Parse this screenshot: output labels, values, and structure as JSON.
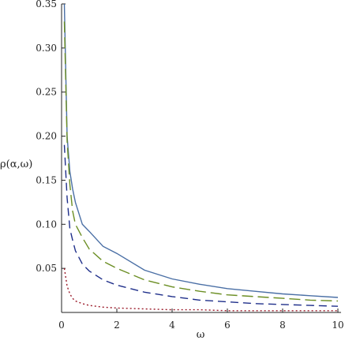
{
  "chart_data": {
    "type": "line",
    "xlabel": "ω",
    "ylabel": "ρ(α,ω)",
    "xlim": [
      0,
      10
    ],
    "ylim": [
      0,
      0.35
    ],
    "x_ticks": [
      "0",
      "2",
      "4",
      "6",
      "8",
      "10"
    ],
    "y_ticks": [
      "0.05",
      "0.10",
      "0.15",
      "0.20",
      "0.25",
      "0.30",
      "0.35"
    ],
    "grid": false,
    "legend": "none",
    "x": [
      0.1,
      0.2,
      0.3,
      0.4,
      0.5,
      0.75,
      1,
      1.5,
      2,
      3,
      4,
      5,
      6,
      7,
      8,
      9,
      10
    ],
    "series": [
      {
        "color": "#4a6fa5",
        "style": "solid",
        "values": [
          0.35,
          0.2,
          0.16,
          0.14,
          0.125,
          0.1,
          0.092,
          0.075,
          0.067,
          0.048,
          0.038,
          0.032,
          0.027,
          0.024,
          0.021,
          0.019,
          0.017
        ]
      },
      {
        "color": "#6b8e23",
        "style": "long-dash",
        "values": [
          0.33,
          0.195,
          0.145,
          0.115,
          0.1,
          0.085,
          0.072,
          0.058,
          0.05,
          0.037,
          0.029,
          0.024,
          0.02,
          0.018,
          0.016,
          0.014,
          0.013
        ]
      },
      {
        "color": "#1f2f8a",
        "style": "medium-dash",
        "values": [
          0.19,
          0.13,
          0.095,
          0.082,
          0.07,
          0.055,
          0.047,
          0.037,
          0.031,
          0.023,
          0.018,
          0.014,
          0.012,
          0.01,
          0.009,
          0.008,
          0.007
        ]
      },
      {
        "color": "#9b1b2a",
        "style": "dotted",
        "values": [
          0.05,
          0.03,
          0.021,
          0.016,
          0.013,
          0.01,
          0.008,
          0.006,
          0.005,
          0.004,
          0.003,
          0.003,
          0.002,
          0.002,
          0.002,
          0.002,
          0.002
        ]
      }
    ]
  }
}
